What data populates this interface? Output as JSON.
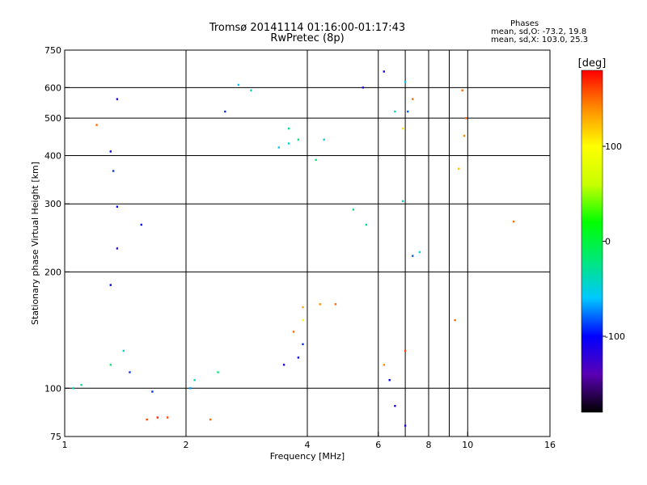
{
  "header": {
    "title": "Tromsø 20141114 01:16:00-01:17:43",
    "subtitle": "RwPretec (8p)",
    "stats_heading": "Phases",
    "stats_o": "mean, sd,O: -73.2, 19.8",
    "stats_x": "mean, sd,X: 103.0, 25.3"
  },
  "chart_data": {
    "type": "scatter",
    "xlabel": "Frequency [MHz]",
    "ylabel": "Stationary phase Virtual Height [km]",
    "x_scale": "log",
    "y_scale": "log",
    "xlim": [
      1,
      16
    ],
    "ylim": [
      75,
      750
    ],
    "x_ticks": [
      1,
      2,
      4,
      6,
      8,
      10,
      16
    ],
    "x_tick_labels": [
      "1",
      "2",
      "4",
      "6",
      "8",
      "10",
      "16"
    ],
    "x_gridlines": [
      2,
      4,
      6,
      7,
      8,
      9,
      10
    ],
    "y_ticks": [
      75,
      100,
      200,
      300,
      400,
      500,
      600,
      750
    ],
    "y_tick_labels": [
      "75",
      "100",
      "200",
      "300",
      "400",
      "500",
      "600",
      "750"
    ],
    "y_gridlines": [
      100,
      200,
      300,
      400,
      500,
      600
    ],
    "grid": true,
    "colorbar": {
      "label": "[deg]",
      "range": [
        -180,
        180
      ],
      "ticks": [
        100,
        0,
        -100
      ],
      "tick_labels": [
        "100",
        "0",
        "-100"
      ],
      "stops": [
        "#000000",
        "#5a00b4",
        "#0000ff",
        "#00c8ff",
        "#00e87a",
        "#00ff00",
        "#c8ff00",
        "#ffff00",
        "#ff8c00",
        "#ff0000"
      ]
    },
    "series": [
      {
        "points": [
          [
            1.05,
            100,
            -40
          ],
          [
            1.1,
            102,
            -30
          ],
          [
            1.2,
            480,
            150
          ],
          [
            1.35,
            560,
            -110
          ],
          [
            1.3,
            410,
            -100
          ],
          [
            1.32,
            365,
            -90
          ],
          [
            1.35,
            295,
            -100
          ],
          [
            1.35,
            230,
            -120
          ],
          [
            1.3,
            185,
            -100
          ],
          [
            1.4,
            125,
            -50
          ],
          [
            1.3,
            115,
            -20
          ],
          [
            1.45,
            110,
            -90
          ],
          [
            1.55,
            265,
            -100
          ],
          [
            1.6,
            83,
            160
          ],
          [
            1.7,
            84,
            170
          ],
          [
            1.8,
            84,
            160
          ],
          [
            2.3,
            83,
            150
          ],
          [
            1.65,
            98,
            -90
          ],
          [
            2.05,
            100,
            -70
          ],
          [
            2.1,
            105,
            -40
          ],
          [
            2.4,
            110,
            -20
          ],
          [
            2.5,
            520,
            -90
          ],
          [
            2.7,
            610,
            -60
          ],
          [
            2.9,
            590,
            -40
          ]
        ]
      },
      {
        "points": [
          [
            3.4,
            420,
            -60
          ],
          [
            3.6,
            430,
            -40
          ],
          [
            3.8,
            440,
            -20
          ],
          [
            3.6,
            470,
            -30
          ],
          [
            4.4,
            440,
            -50
          ],
          [
            4.2,
            390,
            -20
          ],
          [
            5.5,
            600,
            -110
          ],
          [
            6.2,
            660,
            -110
          ],
          [
            7.0,
            620,
            -60
          ],
          [
            7.3,
            560,
            150
          ],
          [
            9.7,
            590,
            150
          ],
          [
            9.9,
            500,
            150
          ],
          [
            9.8,
            450,
            140
          ],
          [
            9.5,
            370,
            120
          ],
          [
            6.9,
            470,
            110
          ],
          [
            7.1,
            520,
            -80
          ],
          [
            6.6,
            520,
            -40
          ],
          [
            6.9,
            305,
            -40
          ],
          [
            5.2,
            290,
            -20
          ],
          [
            5.6,
            265,
            -30
          ],
          [
            13.0,
            270,
            150
          ],
          [
            9.3,
            150,
            150
          ],
          [
            7.0,
            125,
            160
          ],
          [
            6.2,
            115,
            140
          ],
          [
            6.6,
            90,
            -110
          ],
          [
            7.0,
            80,
            -120
          ],
          [
            6.4,
            105,
            -100
          ],
          [
            7.3,
            220,
            -80
          ],
          [
            7.6,
            225,
            -60
          ],
          [
            4.3,
            165,
            140
          ],
          [
            4.7,
            165,
            150
          ],
          [
            3.9,
            162,
            130
          ],
          [
            3.7,
            140,
            150
          ],
          [
            3.8,
            120,
            -100
          ],
          [
            3.5,
            115,
            -110
          ],
          [
            3.9,
            130,
            -90
          ],
          [
            3.9,
            150,
            100
          ]
        ]
      }
    ]
  }
}
